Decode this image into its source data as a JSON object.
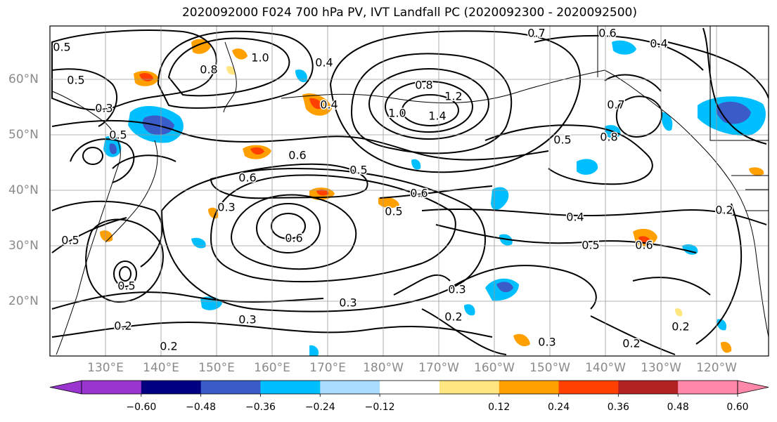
{
  "title": "2020092000 F024 700 hPa PV, IVT Landfall PC (2020092300 - 2020092500)",
  "lat_labels": [
    "60°N",
    "50°N",
    "40°N",
    "30°N",
    "20°N"
  ],
  "lon_labels": [
    "130°E",
    "140°E",
    "150°E",
    "160°E",
    "170°E",
    "180°W",
    "170°W",
    "160°W",
    "150°W",
    "140°W",
    "130°W",
    "120°W"
  ],
  "contour_labels": [
    "0.7",
    "0.6",
    "0.4",
    "0.5",
    "1.0",
    "0.8",
    "0.4",
    "0.5",
    "0.3",
    "0.8",
    "1.2",
    "1.4",
    "1.0",
    "0.4",
    "0.7",
    "0.5",
    "0.8",
    "0.6",
    "0.5",
    "0.5",
    "0.6",
    "0.6",
    "0.5",
    "0.3",
    "0.6",
    "0.4",
    "0.5",
    "0.6",
    "0.5",
    "0.5",
    "0.3",
    "0.3",
    "0.3",
    "0.2",
    "0.2",
    "0.2",
    "0.3",
    "0.2",
    "0.2",
    "0.2"
  ],
  "colorbar": {
    "tick_labels": [
      "−0.60",
      "−0.48",
      "−0.36",
      "−0.24",
      "−0.12",
      "0.12",
      "0.24",
      "0.36",
      "0.48",
      "0.60"
    ],
    "colors": [
      "#9a35d0",
      "#000080",
      "#3a5cc8",
      "#00bfff",
      "#aadcff",
      "#ffffff",
      "#ffe680",
      "#ffa000",
      "#ff4000",
      "#b22222",
      "#ff88aa"
    ]
  }
}
